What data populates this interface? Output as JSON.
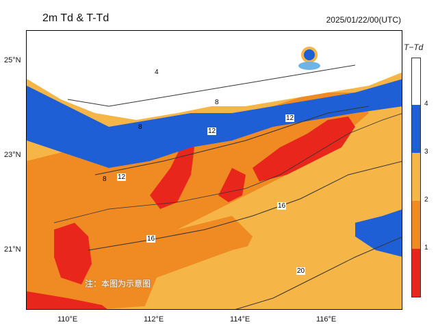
{
  "title": "2m Td & T-Td",
  "datetime": "2025/01/22/00(UTC)",
  "legend": {
    "title": "T−Td",
    "labels": [
      "4",
      "3",
      "2",
      "1"
    ],
    "colors": [
      "#ffffff",
      "#1f5fd6",
      "#f5b547",
      "#f08a22",
      "#e8261c"
    ]
  },
  "axes": {
    "lat_labels": [
      "25°N",
      "23°N",
      "21°N"
    ],
    "lon_labels": [
      "110°E",
      "112°E",
      "114°E",
      "116°E"
    ]
  },
  "contour_labels": [
    "4",
    "8",
    "8",
    "8",
    "12",
    "12",
    "12",
    "16",
    "16",
    "20"
  ],
  "note": "注：本图为示意图"
}
